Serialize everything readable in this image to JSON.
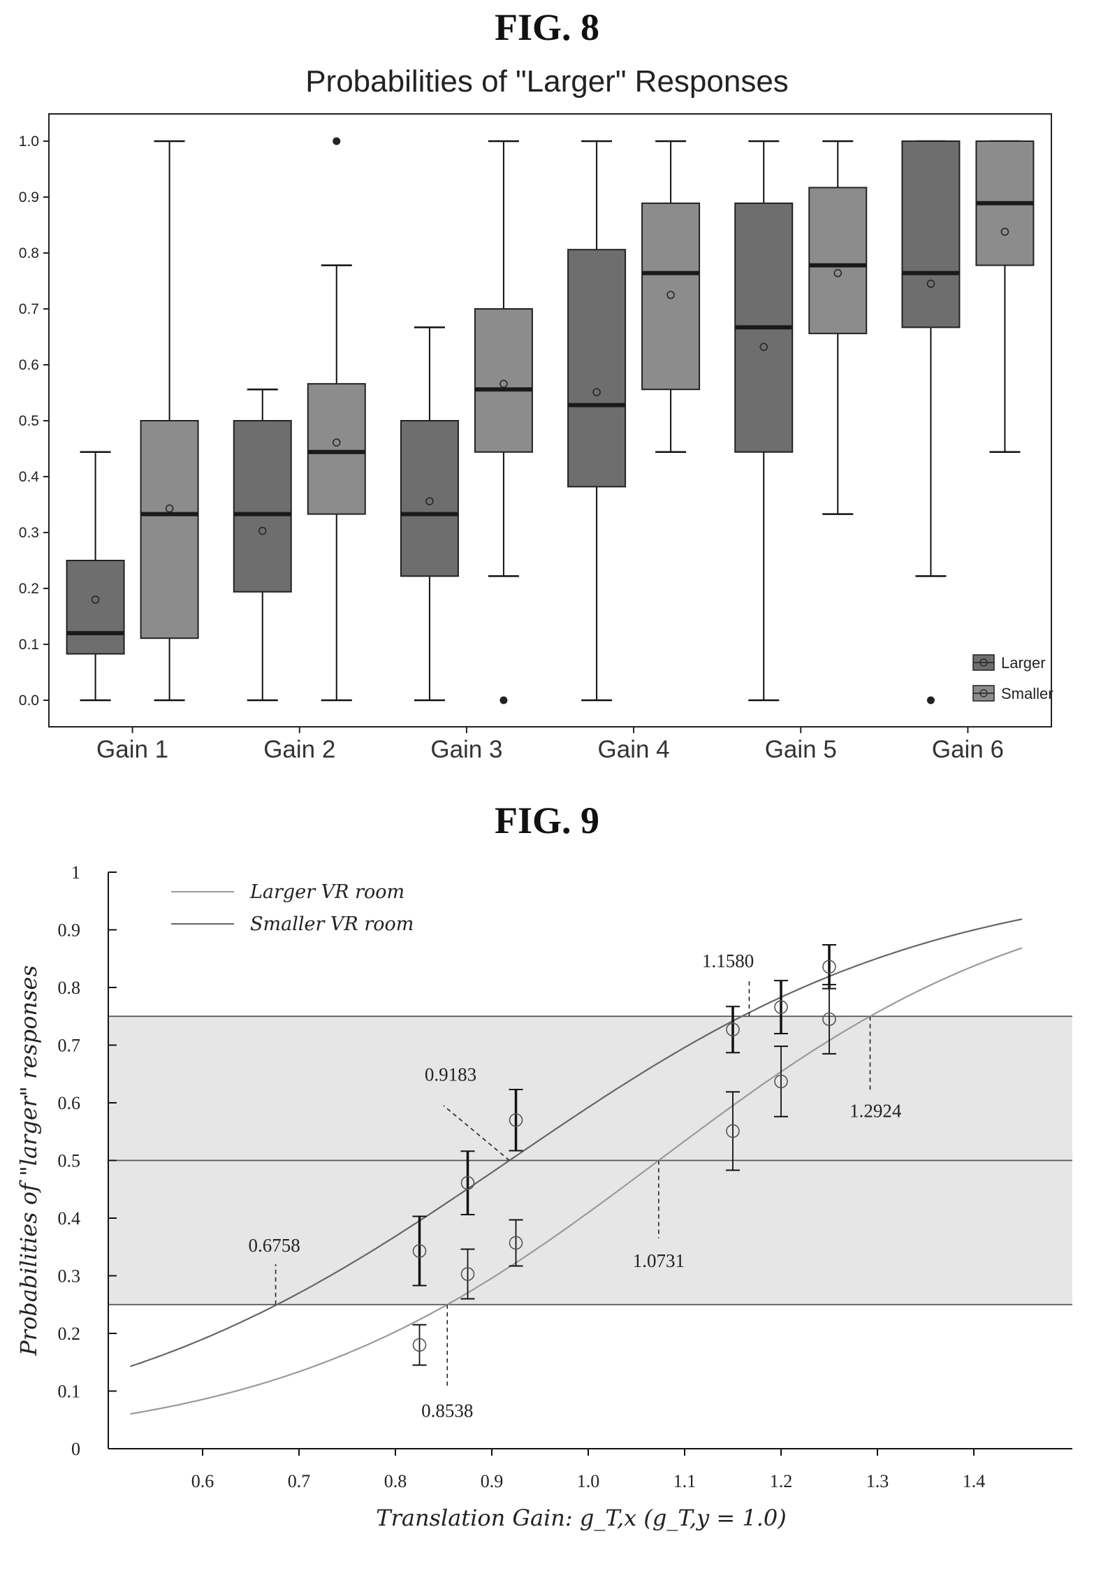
{
  "fig8_label": "FIG. 8",
  "fig9_label": "FIG. 9",
  "chart_data": [
    {
      "type": "box",
      "title": "Probabilities of \"Larger\" Responses",
      "categories": [
        "Gain 1",
        "Gain 2",
        "Gain 3",
        "Gain 4",
        "Gain 5",
        "Gain 6"
      ],
      "yticks": [
        "0.0",
        "0.1",
        "0.2",
        "0.3",
        "0.4",
        "0.5",
        "0.6",
        "0.7",
        "0.8",
        "0.9",
        "1.0"
      ],
      "ylim": [
        0,
        1
      ],
      "legend_position": "bottom-right",
      "series": [
        {
          "name": "Larger",
          "color": "#6e6e6e",
          "boxes": [
            {
              "min": 0.0,
              "q1": 0.083,
              "median": 0.12,
              "q3": 0.25,
              "max": 0.444,
              "mean": 0.18,
              "outliers": []
            },
            {
              "min": 0.0,
              "q1": 0.194,
              "median": 0.333,
              "q3": 0.5,
              "max": 0.556,
              "mean": 0.303,
              "outliers": []
            },
            {
              "min": 0.0,
              "q1": 0.222,
              "median": 0.333,
              "q3": 0.5,
              "max": 0.667,
              "mean": 0.356,
              "outliers": []
            },
            {
              "min": 0.0,
              "q1": 0.382,
              "median": 0.528,
              "q3": 0.806,
              "max": 1.0,
              "mean": 0.551,
              "outliers": []
            },
            {
              "min": 0.0,
              "q1": 0.444,
              "median": 0.667,
              "q3": 0.889,
              "max": 1.0,
              "mean": 0.632,
              "outliers": []
            },
            {
              "min": 0.222,
              "q1": 0.667,
              "median": 0.764,
              "q3": 1.0,
              "max": 1.0,
              "mean": 0.745,
              "outliers": [
                0.0
              ]
            }
          ]
        },
        {
          "name": "Smaller",
          "color": "#8c8c8c",
          "boxes": [
            {
              "min": 0.0,
              "q1": 0.111,
              "median": 0.333,
              "q3": 0.5,
              "max": 1.0,
              "mean": 0.343,
              "outliers": []
            },
            {
              "min": 0.0,
              "q1": 0.333,
              "median": 0.444,
              "q3": 0.566,
              "max": 0.778,
              "mean": 0.461,
              "outliers": [
                1.0
              ]
            },
            {
              "min": 0.222,
              "q1": 0.444,
              "median": 0.556,
              "q3": 0.7,
              "max": 1.0,
              "mean": 0.566,
              "outliers": [
                0.0
              ]
            },
            {
              "min": 0.444,
              "q1": 0.556,
              "median": 0.764,
              "q3": 0.889,
              "max": 1.0,
              "mean": 0.725,
              "outliers": []
            },
            {
              "min": 0.333,
              "q1": 0.656,
              "median": 0.778,
              "q3": 0.917,
              "max": 1.0,
              "mean": 0.764,
              "outliers": []
            },
            {
              "min": 0.444,
              "q1": 0.778,
              "median": 0.889,
              "q3": 1.0,
              "max": 1.0,
              "mean": 0.838,
              "outliers": []
            }
          ]
        }
      ]
    },
    {
      "type": "line",
      "xlabel": "Translation Gain: g_T,x (g_T,y = 1.0)",
      "ylabel": "Probabilities of \"larger\" responses",
      "xticks": [
        "0.6",
        "0.7",
        "0.8",
        "0.9",
        "1.0",
        "1.1",
        "1.2",
        "1.3",
        "1.4"
      ],
      "yticks": [
        "0",
        "0.1",
        "0.2",
        "0.3",
        "0.4",
        "0.5",
        "0.6",
        "0.7",
        "0.8",
        "0.9",
        "1"
      ],
      "xlim": [
        0.5,
        1.5
      ],
      "ylim": [
        0,
        1
      ],
      "legend_position": "top-left",
      "shaded_band": [
        0.25,
        0.75
      ],
      "reference_lines": [
        0.25,
        0.5,
        0.75
      ],
      "series": [
        {
          "name": "Larger VR room",
          "color": "#9a9a9a",
          "curve": {
            "pse": 1.0731,
            "p25": 0.8538,
            "p75": 1.2924
          },
          "points": [
            {
              "x": 0.825,
              "y": 0.18,
              "err": 0.035
            },
            {
              "x": 0.875,
              "y": 0.303,
              "err": 0.043
            },
            {
              "x": 0.925,
              "y": 0.357,
              "err": 0.04
            },
            {
              "x": 1.15,
              "y": 0.551,
              "err": 0.068
            },
            {
              "x": 1.2,
              "y": 0.637,
              "err": 0.061
            },
            {
              "x": 1.25,
              "y": 0.745,
              "err": 0.06
            }
          ]
        },
        {
          "name": "Smaller VR room",
          "color": "#666666",
          "curve": {
            "pse": 0.9183,
            "p25": 0.6758,
            "p75": 1.158
          },
          "points": [
            {
              "x": 0.825,
              "y": 0.343,
              "err": 0.06
            },
            {
              "x": 0.875,
              "y": 0.461,
              "err": 0.055
            },
            {
              "x": 0.925,
              "y": 0.57,
              "err": 0.053
            },
            {
              "x": 1.15,
              "y": 0.727,
              "err": 0.04
            },
            {
              "x": 1.2,
              "y": 0.766,
              "err": 0.046
            },
            {
              "x": 1.25,
              "y": 0.836,
              "err": 0.038
            }
          ]
        }
      ],
      "annotations": [
        {
          "text": "0.6758",
          "x": 0.6758,
          "y": 0.25
        },
        {
          "text": "0.8538",
          "x": 0.8538,
          "y": 0.25
        },
        {
          "text": "0.9183",
          "x": 0.9183,
          "y": 0.5
        },
        {
          "text": "1.0731",
          "x": 1.0731,
          "y": 0.5
        },
        {
          "text": "1.1580",
          "x": 1.158,
          "y": 0.75
        },
        {
          "text": "1.2924",
          "x": 1.2924,
          "y": 0.75
        }
      ]
    }
  ]
}
